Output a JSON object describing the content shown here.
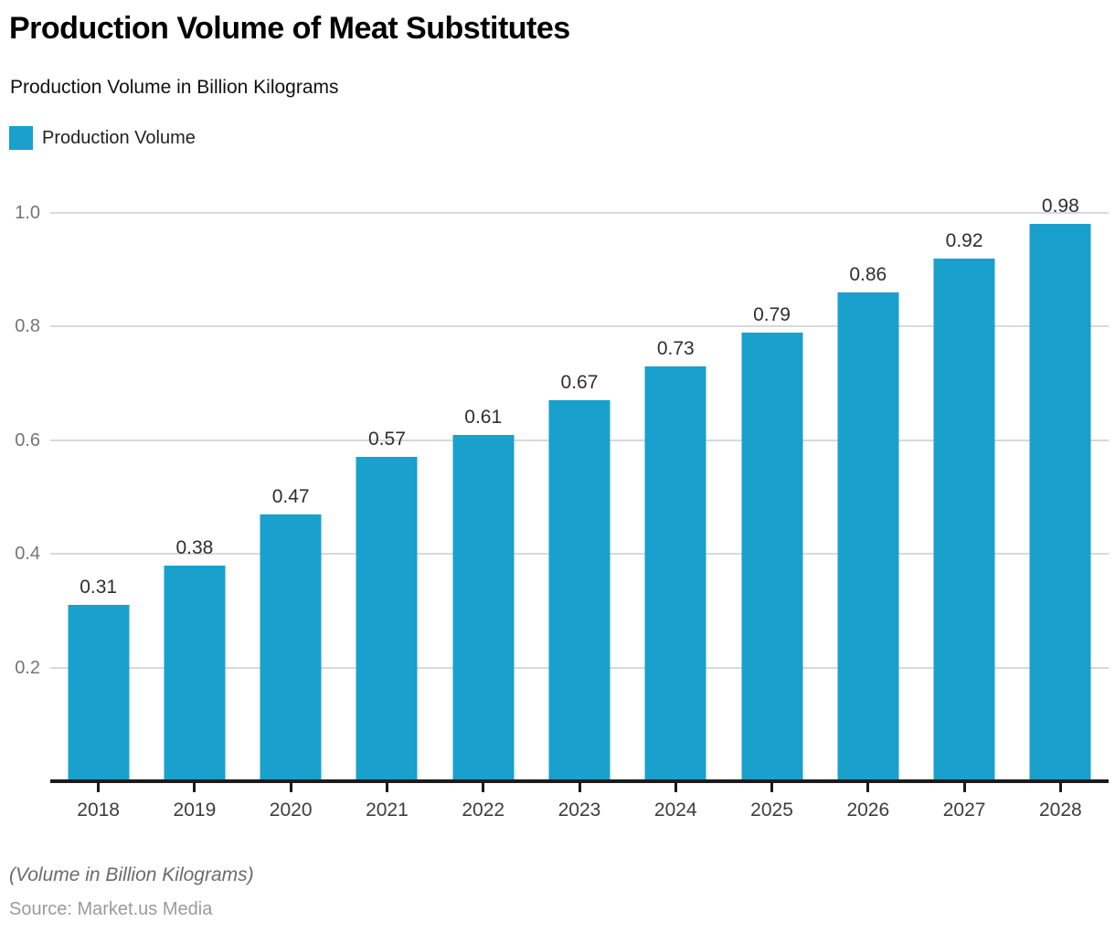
{
  "title": "Production Volume of Meat Substitutes",
  "subtitle": "Production Volume in Billion Kilograms",
  "legend": {
    "label": "Production Volume"
  },
  "footnote": "(Volume in Billion Kilograms)",
  "source": "Source: Market.us Media",
  "colors": {
    "bar": "#1aa0cd",
    "axis": "#1b1b1b",
    "gridline": "#d9d9d9",
    "y_tick_label": "#757575",
    "x_tick_label": "#3d3d3d",
    "value_label": "#2e2e2e",
    "footnote": "#6b6b6b",
    "source": "#9b9b9b"
  },
  "chart_data": {
    "type": "bar",
    "title": "Production Volume of Meat Substitutes",
    "subtitle": "Production Volume in Billion Kilograms",
    "categories": [
      "2018",
      "2019",
      "2020",
      "2021",
      "2022",
      "2023",
      "2024",
      "2025",
      "2026",
      "2027",
      "2028"
    ],
    "series": [
      {
        "name": "Production Volume",
        "values": [
          0.31,
          0.38,
          0.47,
          0.57,
          0.61,
          0.67,
          0.73,
          0.79,
          0.86,
          0.92,
          0.98
        ]
      }
    ],
    "value_labels": [
      "0.31",
      "0.38",
      "0.47",
      "0.57",
      "0.61",
      "0.67",
      "0.73",
      "0.79",
      "0.86",
      "0.92",
      "0.98"
    ],
    "xlabel": "",
    "ylabel": "Production Volume in Billion Kilograms",
    "ylim": [
      0,
      1.0
    ],
    "yticks": [
      0.2,
      0.4,
      0.6,
      0.8,
      1.0
    ],
    "ytick_labels": [
      "0.2",
      "0.4",
      "0.6",
      "0.8",
      "1.0"
    ],
    "grid": true,
    "legend_position": "top-left",
    "data_labels_shown": true
  }
}
